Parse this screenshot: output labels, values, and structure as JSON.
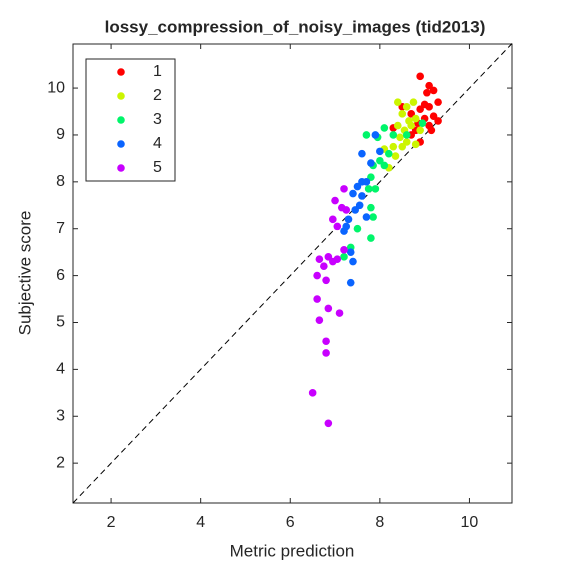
{
  "chart_data": {
    "type": "scatter",
    "title": "lossy_compression_of_noisy_images (tid2013)",
    "x_label": "Metric prediction",
    "y_label": "Subjective score",
    "xlim": [
      1.15,
      10.95
    ],
    "ylim": [
      1.15,
      10.94
    ],
    "xticks": [
      2,
      4,
      6,
      8,
      10
    ],
    "yticks": [
      2,
      3,
      4,
      5,
      6,
      7,
      8,
      9,
      10
    ],
    "legend": "upper left",
    "series": [
      {
        "name": "1",
        "color": "#ff0000",
        "x": [
          8.9,
          9.1,
          9.2,
          9.05,
          9.3,
          9.0,
          9.1,
          8.9,
          8.5,
          8.7,
          9.2,
          9.0,
          9.3,
          8.3,
          8.8,
          9.1,
          8.7,
          8.9,
          8.85,
          9.15
        ],
        "values": [
          10.25,
          10.05,
          9.95,
          9.9,
          9.7,
          9.65,
          9.6,
          9.55,
          9.6,
          9.45,
          9.4,
          9.35,
          9.3,
          9.15,
          9.1,
          9.2,
          9.0,
          8.85,
          9.25,
          9.1
        ]
      },
      {
        "name": "2",
        "color": "#ccf500",
        "x": [
          8.4,
          8.6,
          8.75,
          8.5,
          8.65,
          8.4,
          8.55,
          8.7,
          8.8,
          8.45,
          8.6,
          8.3,
          8.1,
          8.35,
          8.2,
          8.8,
          8.9,
          8.5
        ],
        "values": [
          9.7,
          9.6,
          9.7,
          9.45,
          9.3,
          9.2,
          9.1,
          9.2,
          9.35,
          8.95,
          8.85,
          8.75,
          8.7,
          8.55,
          8.3,
          8.8,
          9.1,
          8.75
        ]
      },
      {
        "name": "3",
        "color": "#00f56a",
        "x": [
          7.7,
          7.95,
          8.1,
          8.3,
          8.6,
          8.95,
          7.85,
          8.0,
          8.2,
          8.1,
          7.8,
          7.75,
          7.9,
          7.8,
          7.85,
          7.8,
          7.5,
          7.35,
          7.2
        ],
        "values": [
          9.0,
          8.95,
          9.15,
          9.0,
          9.0,
          9.25,
          8.35,
          8.45,
          8.6,
          8.35,
          8.1,
          7.85,
          7.85,
          7.45,
          7.25,
          6.8,
          7.0,
          6.6,
          6.4
        ]
      },
      {
        "name": "4",
        "color": "#0a64ff",
        "x": [
          7.9,
          7.6,
          8.0,
          7.8,
          7.7,
          7.6,
          7.5,
          7.4,
          7.6,
          7.55,
          7.45,
          7.7,
          7.3,
          7.25,
          7.2,
          7.35,
          7.4,
          7.35
        ],
        "values": [
          9.0,
          8.6,
          8.65,
          8.4,
          8.0,
          8.0,
          7.9,
          7.75,
          7.7,
          7.5,
          7.4,
          7.25,
          7.2,
          7.05,
          6.95,
          6.5,
          6.3,
          5.85
        ]
      },
      {
        "name": "5",
        "color": "#c800ff",
        "x": [
          7.2,
          7.0,
          7.15,
          7.25,
          6.95,
          7.05,
          7.2,
          6.65,
          6.85,
          6.95,
          7.05,
          6.75,
          6.6,
          6.8,
          6.6,
          6.85,
          7.1,
          6.65,
          6.8,
          6.8,
          6.5,
          6.85
        ],
        "values": [
          7.85,
          7.6,
          7.45,
          7.4,
          7.2,
          7.05,
          6.55,
          6.35,
          6.4,
          6.3,
          6.35,
          6.2,
          6.0,
          5.9,
          5.5,
          5.3,
          5.2,
          5.05,
          4.6,
          4.35,
          3.5,
          2.85
        ]
      }
    ]
  }
}
